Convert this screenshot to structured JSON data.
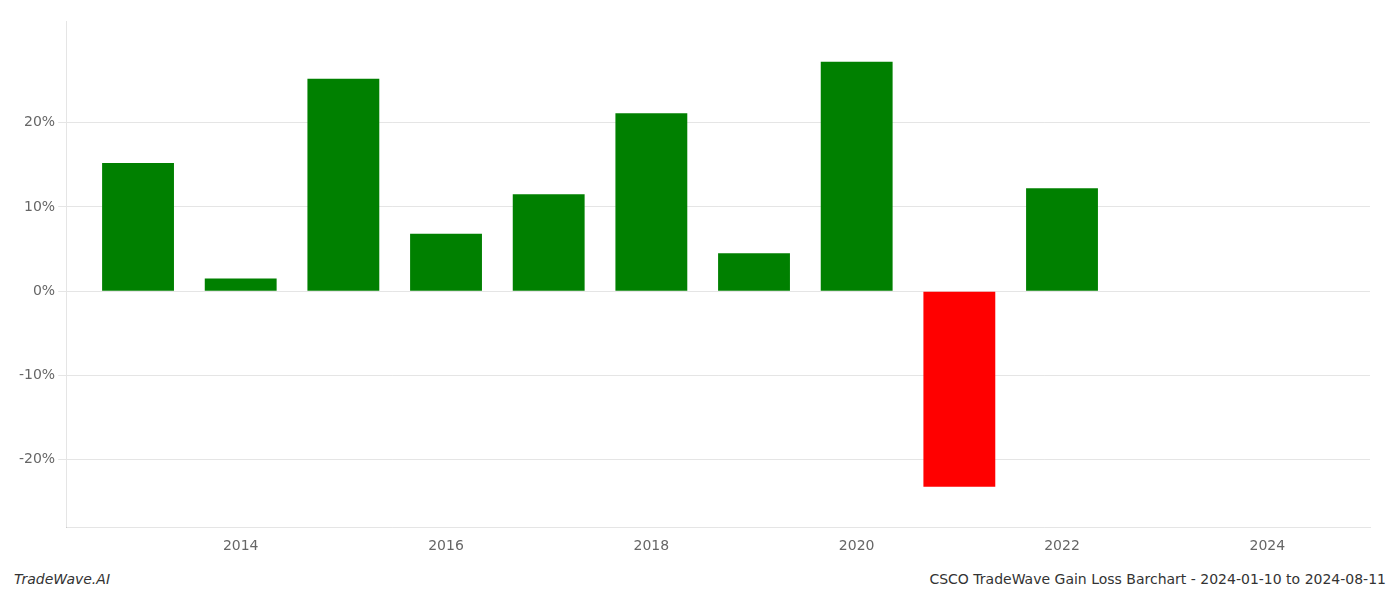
{
  "chart_data": {
    "type": "bar",
    "x": [
      2013,
      2014,
      2015,
      2016,
      2017,
      2018,
      2019,
      2020,
      2021,
      2022,
      2023
    ],
    "values": [
      0.152,
      0.015,
      0.252,
      0.068,
      0.115,
      0.211,
      0.045,
      0.272,
      -0.232,
      0.122,
      0.0
    ],
    "colors": [
      "#008000",
      "#008000",
      "#008000",
      "#008000",
      "#008000",
      "#008000",
      "#008000",
      "#008000",
      "#ff0000",
      "#008000",
      "#008000"
    ],
    "xlim": [
      2012.3,
      2025.0
    ],
    "xticks": [
      2014,
      2016,
      2018,
      2020,
      2022,
      2024
    ],
    "ylim": [
      -0.28,
      0.32
    ],
    "yticks": [
      {
        "value": -0.2,
        "label": "-20%"
      },
      {
        "value": -0.1,
        "label": "-10%"
      },
      {
        "value": 0.0,
        "label": "0%"
      },
      {
        "value": 0.1,
        "label": "10%"
      },
      {
        "value": 0.2,
        "label": "20%"
      }
    ],
    "grid": "y",
    "annotations": [
      "TradeWave.AI",
      "CSCO TradeWave Gain Loss Barchart - 2024-01-10 to 2024-08-11"
    ]
  }
}
